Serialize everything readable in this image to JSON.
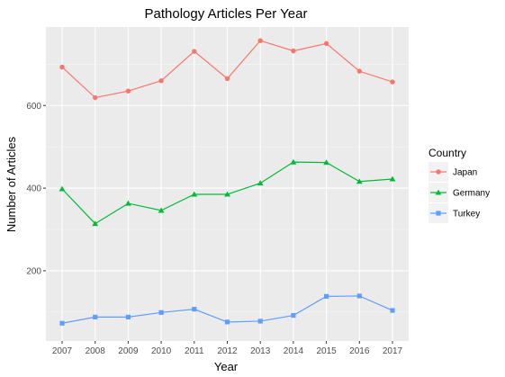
{
  "chart_data": {
    "type": "line",
    "title": "Pathology Articles Per Year",
    "xlabel": "Year",
    "ylabel": "Number of Articles",
    "categories": [
      "2007",
      "2008",
      "2009",
      "2010",
      "2011",
      "2012",
      "2013",
      "2014",
      "2015",
      "2016",
      "2017"
    ],
    "x_ticks": [
      "2007",
      "2008",
      "2009",
      "2010",
      "2011",
      "2012",
      "2013",
      "2014",
      "2015",
      "2016",
      "2017"
    ],
    "y_ticks": [
      "200",
      "400",
      "600"
    ],
    "ylim": [
      30,
      790
    ],
    "grid": true,
    "legend_title": "Country",
    "legend_position": "right",
    "series": [
      {
        "name": "Japan",
        "color": "#F8766D",
        "marker": "circle",
        "values": [
          693,
          619,
          635,
          660,
          731,
          665,
          757,
          732,
          750,
          683,
          657
        ]
      },
      {
        "name": "Germany",
        "color": "#00BA38",
        "marker": "triangle",
        "values": [
          398,
          314,
          363,
          346,
          385,
          385,
          412,
          463,
          462,
          416,
          422
        ]
      },
      {
        "name": "Turkey",
        "color": "#619CFF",
        "marker": "square",
        "values": [
          73,
          88,
          88,
          99,
          107,
          76,
          78,
          92,
          138,
          139,
          104
        ]
      }
    ]
  }
}
